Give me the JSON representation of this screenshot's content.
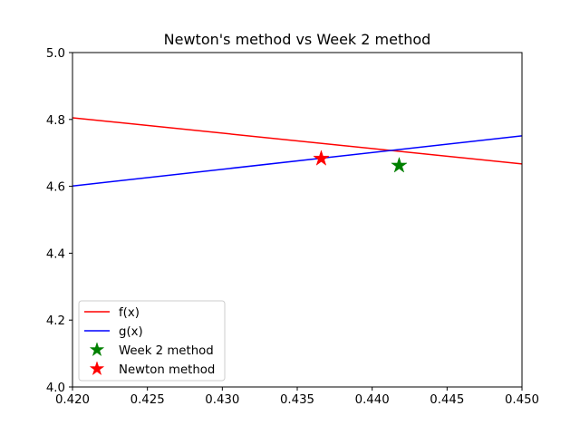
{
  "chart_data": {
    "type": "line",
    "title": "Newton's method vs Week 2 method",
    "xlabel": "",
    "ylabel": "",
    "xlim": [
      0.42,
      0.45
    ],
    "ylim": [
      4.0,
      5.0
    ],
    "x_ticks": [
      0.42,
      0.425,
      0.43,
      0.435,
      0.44,
      0.445,
      0.45
    ],
    "x_tick_labels": [
      "0.420",
      "0.425",
      "0.430",
      "0.435",
      "0.440",
      "0.445",
      "0.450"
    ],
    "y_ticks": [
      4.0,
      4.2,
      4.4,
      4.6,
      4.8,
      5.0
    ],
    "y_tick_labels": [
      "4.0",
      "4.2",
      "4.4",
      "4.6",
      "4.8",
      "5.0"
    ],
    "grid": false,
    "legend_position": "lower-left",
    "series": [
      {
        "name": "f(x)",
        "kind": "line",
        "color": "#ff0000",
        "x": [
          0.42,
          0.45
        ],
        "y": [
          4.805,
          4.667
        ]
      },
      {
        "name": "g(x)",
        "kind": "line",
        "color": "#0000ff",
        "x": [
          0.42,
          0.45
        ],
        "y": [
          4.601,
          4.751
        ]
      },
      {
        "name": "Week 2 method",
        "kind": "marker",
        "marker": "star",
        "color": "#008000",
        "x": [
          0.4418
        ],
        "y": [
          4.662
        ]
      },
      {
        "name": "Newton method",
        "kind": "marker",
        "marker": "star",
        "color": "#ff0000",
        "x": [
          0.4366
        ],
        "y": [
          4.683
        ]
      }
    ]
  }
}
